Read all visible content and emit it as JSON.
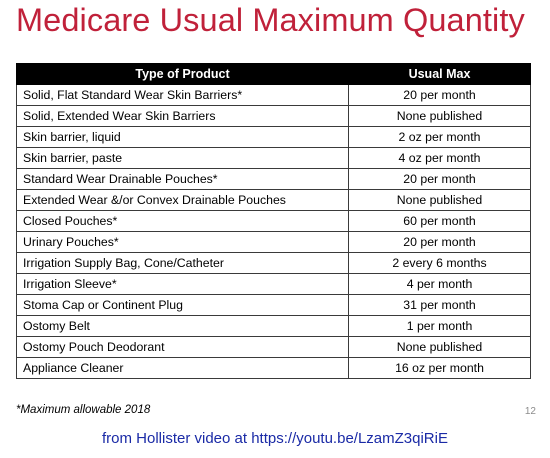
{
  "title": "Medicare Usual Maximum Quantity",
  "table": {
    "headers": [
      "Type of Product",
      "Usual Max"
    ],
    "rows": [
      [
        "Solid, Flat Standard Wear Skin Barriers*",
        "20 per month"
      ],
      [
        "Solid, Extended Wear Skin Barriers",
        "None published"
      ],
      [
        "Skin barrier, liquid",
        "2 oz per month"
      ],
      [
        "Skin barrier, paste",
        "4 oz per month"
      ],
      [
        "Standard Wear Drainable Pouches*",
        "20 per month"
      ],
      [
        "Extended Wear &/or Convex Drainable Pouches",
        "None published"
      ],
      [
        "Closed Pouches*",
        "60 per month"
      ],
      [
        "Urinary Pouches*",
        "20 per month"
      ],
      [
        "Irrigation Supply Bag, Cone/Catheter",
        "2 every 6 months"
      ],
      [
        "Irrigation Sleeve*",
        "4 per month"
      ],
      [
        "Stoma Cap or Continent Plug",
        "31 per month"
      ],
      [
        "Ostomy Belt",
        "1 per month"
      ],
      [
        "Ostomy Pouch Deodorant",
        "None published"
      ],
      [
        "Appliance Cleaner",
        "16 oz per month"
      ]
    ]
  },
  "footnote": "*Maximum allowable 2018",
  "page_number": "12",
  "source": "from Hollister video at  https://youtu.be/LzamZ3qiRiE",
  "colors": {
    "title": "#c0213a",
    "header_bg": "#000000",
    "header_text": "#ffffff",
    "source_text": "#1a2aa6"
  }
}
